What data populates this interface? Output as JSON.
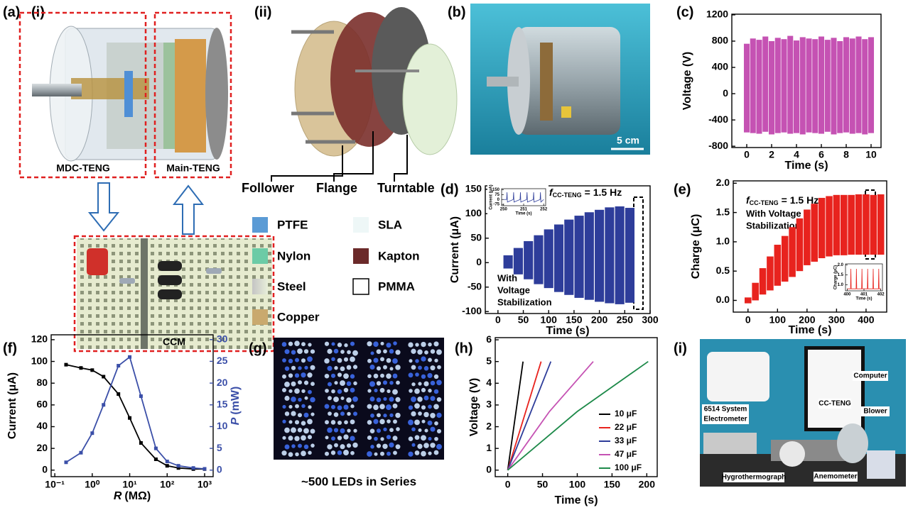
{
  "figure": {
    "a": {
      "label": "(a)",
      "i": "(i)",
      "ii": "(ii)",
      "mdc": "MDC-TENG",
      "main": "Main-TENG",
      "ccm": "CCM",
      "follower": "Follower",
      "flange": "Flange",
      "turntable": "Turntable",
      "materials": [
        "PTFE",
        "Nylon",
        "Steel",
        "Copper",
        "SLA",
        "Kapton",
        "PMMA"
      ]
    },
    "b": {
      "label": "(b)",
      "scale": "5 cm"
    },
    "c": {
      "label": "(c)"
    },
    "d": {
      "label": "(d)"
    },
    "e": {
      "label": "(e)"
    },
    "f": {
      "label": "(f)"
    },
    "g": {
      "label": "(g)",
      "caption": "~500 LEDs in Series"
    },
    "h": {
      "label": "(h)"
    },
    "i": {
      "label": "(i)",
      "computer": "Computer",
      "blower": "Blower",
      "electrometer": [
        "6514 System",
        "Electrometer"
      ],
      "cc_teng": "CC-TENG",
      "hygro": "Hygrothermograph",
      "anemometer": "Anemometer"
    }
  },
  "chart_data": [
    {
      "type": "line",
      "ylabel": "Voltage (V)",
      "xlabel": "Time (s)",
      "xlim": [
        -1.2,
        10.8
      ],
      "xticks": [
        0,
        2,
        4,
        6,
        8,
        10
      ],
      "ylim": [
        -820,
        1210
      ],
      "yticks": [
        -800,
        -400,
        0,
        400,
        800,
        1200
      ],
      "series": [
        {
          "color": "#c552b3",
          "x": [
            0,
            0.5,
            1,
            1.5,
            2,
            2.5,
            3,
            3.5,
            4,
            4.5,
            5,
            5.5,
            6,
            6.5,
            7,
            7.5,
            8,
            8.5,
            9,
            9.5,
            10
          ],
          "values": [
            760,
            840,
            820,
            870,
            800,
            850,
            830,
            880,
            810,
            860,
            840,
            830,
            870,
            820,
            850,
            800,
            860,
            840,
            870,
            830,
            860
          ],
          "lows": [
            -590,
            -600,
            -610,
            -580,
            -620,
            -600,
            -590,
            -610,
            -600,
            -620,
            -590,
            -600,
            -610,
            -580,
            -620,
            -600,
            -590,
            -610,
            -600,
            -620,
            -600
          ]
        }
      ]
    },
    {
      "type": "line",
      "ylabel": "Current (μA)",
      "xlabel": "Time (s)",
      "annotation": {
        "symbol": "f",
        "subscript": "CC-TENG",
        "rest": "= 1.5 Hz"
      },
      "note": [
        "With",
        "Voltage",
        "Stabilization"
      ],
      "xlim": [
        -25,
        300
      ],
      "xticks": [
        0,
        50,
        100,
        150,
        200,
        250,
        300
      ],
      "ylim": [
        -104,
        157
      ],
      "yticks": [
        -100,
        -50,
        0,
        50,
        100,
        150
      ],
      "series": [
        {
          "color": "#2e3d9a",
          "x": [
            0,
            20,
            40,
            60,
            80,
            100,
            120,
            140,
            160,
            180,
            200,
            220,
            240,
            260
          ],
          "values": [
            0,
            15,
            30,
            44,
            56,
            68,
            78,
            88,
            96,
            103,
            108,
            113,
            115,
            112
          ],
          "lows": [
            0,
            -12,
            -24,
            -34,
            -44,
            -52,
            -60,
            -66,
            -72,
            -76,
            -80,
            -83,
            -85,
            -82
          ]
        }
      ]
    },
    {
      "type": "line",
      "ylabel": "Current (μA)",
      "xlabel": "Time (s)",
      "xlim": [
        249.9,
        252.1
      ],
      "xticks": [
        250,
        251,
        252
      ],
      "ylim": [
        -95,
        165
      ],
      "yticks": [
        -75,
        0,
        75,
        150
      ],
      "x": [
        250,
        250.15,
        250.17,
        250.19,
        250.48,
        250.5,
        250.52,
        250.82,
        250.84,
        250.86,
        251.15,
        251.17,
        251.19,
        251.48,
        251.5,
        251.52,
        251.82,
        251.84,
        251.86,
        252
      ],
      "series": [
        {
          "color": "#2e3d9a",
          "values": [
            0,
            0,
            110,
            -40,
            0,
            110,
            -40,
            0,
            110,
            -40,
            0,
            110,
            -40,
            0,
            110,
            -40,
            0,
            110,
            -40,
            0
          ]
        }
      ]
    },
    {
      "type": "line",
      "ylabel": "Charge (μC)",
      "xlabel": "Time (s)",
      "annotation": {
        "symbol": "f",
        "subscript": "CC-TENG",
        "rest": "= 1.5 Hz"
      },
      "note": [
        "With Voltage",
        "Stabilization"
      ],
      "xlim": [
        -50,
        470
      ],
      "xticks": [
        0,
        100,
        200,
        300,
        400
      ],
      "ylim": [
        -0.2,
        2.04
      ],
      "yticks": [
        {
          "value": 0,
          "label": "0.0"
        },
        0.5,
        {
          "value": 1,
          "label": "1.0"
        },
        1.5,
        {
          "value": 2,
          "label": "2.0"
        }
      ],
      "series": [
        {
          "color": "#e8231e",
          "x": [
            0,
            25,
            50,
            75,
            100,
            125,
            150,
            175,
            200,
            225,
            250,
            275,
            300,
            325,
            350,
            375,
            400,
            425,
            450
          ],
          "values": [
            0.05,
            0.3,
            0.55,
            0.75,
            0.95,
            1.1,
            1.25,
            1.4,
            1.55,
            1.65,
            1.75,
            1.78,
            1.8,
            1.8,
            1.8,
            1.81,
            1.81,
            1.8,
            1.81
          ],
          "lows": [
            -0.05,
            0,
            0.1,
            0.17,
            0.25,
            0.32,
            0.4,
            0.5,
            0.6,
            0.66,
            0.72,
            0.75,
            0.77,
            0.77,
            0.78,
            0.78,
            0.78,
            0.78,
            0.78
          ]
        }
      ]
    },
    {
      "type": "line",
      "ylabel": "Charge (μC)",
      "xlabel": "Time (s)",
      "xlim": [
        399.9,
        402.1
      ],
      "xticks": [
        400,
        401,
        402
      ],
      "ylim": [
        0.7,
        2.05
      ],
      "yticks": [
        {
          "value": 1,
          "label": "1.0"
        },
        1.5,
        {
          "value": 2,
          "label": "2.0"
        }
      ],
      "x": [
        400,
        400.2,
        400.22,
        400.24,
        400.53,
        400.55,
        400.57,
        400.86,
        400.88,
        400.9,
        401.2,
        401.22,
        401.24,
        401.53,
        401.55,
        401.57,
        401.86,
        401.88,
        401.9,
        402
      ],
      "series": [
        {
          "color": "#e8231e",
          "values": [
            0.8,
            0.8,
            1.8,
            0.8,
            0.8,
            1.8,
            0.8,
            0.8,
            1.8,
            0.8,
            0.8,
            1.8,
            0.8,
            0.8,
            1.8,
            0.8,
            0.8,
            1.8,
            0.8,
            0.8
          ]
        }
      ]
    },
    {
      "type": "line",
      "ylabel": "Current (μA)",
      "y2label": {
        "symbol": "P",
        "unit": "(mW)"
      },
      "xlabel": {
        "symbol": "R",
        "unit": "(MΩ)"
      },
      "xlog": true,
      "xlim": [
        0.08,
        1690
      ],
      "xticks": [
        {
          "value": 0.1,
          "label": "10⁻¹"
        },
        {
          "value": 1,
          "label": "10⁰"
        },
        {
          "value": 10,
          "label": "10¹"
        },
        {
          "value": 100,
          "label": "10²"
        },
        {
          "value": 1000,
          "label": "10³"
        }
      ],
      "ylim": [
        -6,
        124.5
      ],
      "yticks": [
        0,
        20,
        40,
        60,
        80,
        100,
        120
      ],
      "y2lim": [
        -1.5,
        31.1
      ],
      "y2ticks": [
        0,
        5,
        10,
        15,
        20,
        25,
        30
      ],
      "x": [
        0.2,
        0.5,
        1,
        2,
        5,
        10,
        20,
        50,
        100,
        200,
        500,
        1000
      ],
      "series": [
        {
          "color": "#000000",
          "marker": true,
          "values": [
            97,
            94,
            92,
            86,
            70,
            48,
            25,
            10,
            4,
            2,
            1,
            1
          ]
        },
        {
          "color": "#3b4fa8",
          "marker": true,
          "axis": "y2",
          "values": [
            1.8,
            4,
            8.5,
            15,
            24,
            26,
            17,
            5,
            2,
            1,
            0.5,
            0.3
          ]
        }
      ]
    },
    {
      "type": "line",
      "ylabel": "Voltage (V)",
      "xlabel": "Time (s)",
      "legend": "lower right",
      "xlim": [
        -18,
        215
      ],
      "xticks": [
        0,
        50,
        100,
        150,
        200
      ],
      "ylim": [
        -0.3,
        6.1
      ],
      "yticks": [
        0,
        1,
        2,
        3,
        4,
        5,
        6
      ],
      "series": [
        {
          "name": "10 μF",
          "color": "#000000",
          "x": [
            0,
            22
          ],
          "values": [
            0,
            5
          ]
        },
        {
          "name": "22 μF",
          "color": "#e8231e",
          "x": [
            0,
            48
          ],
          "values": [
            0,
            5
          ]
        },
        {
          "name": "33 μF",
          "color": "#2e3d9a",
          "x": [
            0,
            62
          ],
          "values": [
            0,
            5
          ]
        },
        {
          "name": "47 μF",
          "color": "#c552b3",
          "x": [
            0,
            60,
            123
          ],
          "values": [
            0,
            2.7,
            5
          ]
        },
        {
          "name": "100 μF",
          "color": "#1e8a4a",
          "x": [
            0,
            100,
            202
          ],
          "values": [
            0,
            2.7,
            5
          ]
        }
      ]
    }
  ]
}
